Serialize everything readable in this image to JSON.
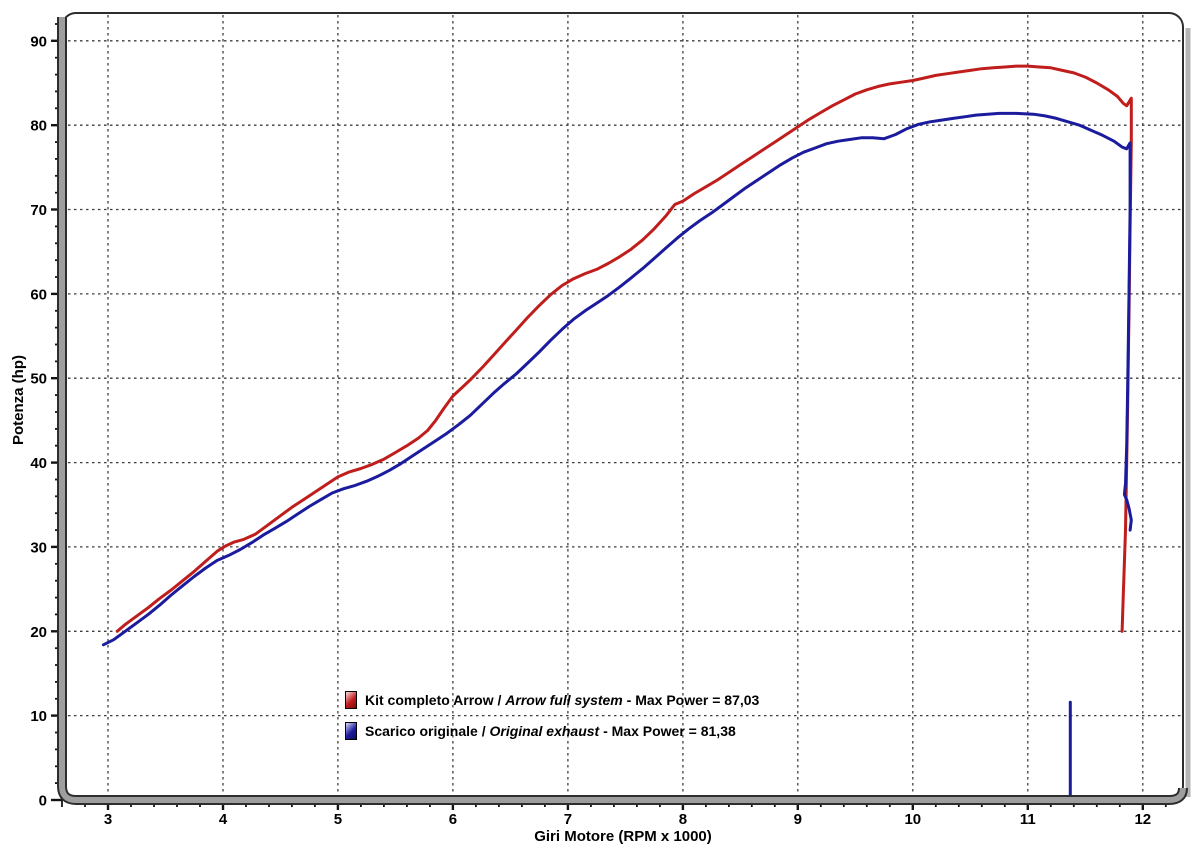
{
  "chart_data": {
    "type": "line",
    "title": "",
    "xlabel": "Giri Motore (RPM x 1000)",
    "ylabel": "Potenza (hp)",
    "xlim": [
      2.6,
      12.35
    ],
    "ylim": [
      0,
      93.3
    ],
    "x_ticks": [
      3,
      4,
      5,
      6,
      7,
      8,
      9,
      10,
      11,
      12
    ],
    "y_ticks": [
      0,
      10,
      20,
      30,
      40,
      50,
      60,
      70,
      80,
      90
    ],
    "x_minor_step": 0.2,
    "y_minor_step": 2,
    "grid": true,
    "grid_style": "dashed",
    "legend_position": "bottom-center-inside",
    "colors": {
      "grid": "#3d3d3d",
      "frame_gray": "#9e9e9e",
      "frame_dark": "#2d2d2d",
      "shadow": "#b5b5b5"
    },
    "series": [
      {
        "id": "arrow-kit",
        "name": "Kit completo Arrow / Arrow full system",
        "max_power": "87,03",
        "color": "#c01d1d",
        "color_light": "#fbdede",
        "color_dark": "#7c0b0b",
        "segments": [
          [
            [
              3.08,
              20
            ],
            [
              3.15,
              20.8
            ],
            [
              3.25,
              21.8
            ],
            [
              3.35,
              22.8
            ],
            [
              3.45,
              23.9
            ],
            [
              3.55,
              24.9
            ],
            [
              3.65,
              26
            ],
            [
              3.75,
              27.1
            ],
            [
              3.85,
              28.3
            ],
            [
              3.95,
              29.5
            ],
            [
              4.02,
              30.1
            ],
            [
              4.1,
              30.6
            ],
            [
              4.18,
              30.9
            ],
            [
              4.28,
              31.5
            ],
            [
              4.4,
              32.7
            ],
            [
              4.5,
              33.7
            ],
            [
              4.6,
              34.7
            ],
            [
              4.7,
              35.6
            ],
            [
              4.8,
              36.5
            ],
            [
              4.9,
              37.4
            ],
            [
              5,
              38.3
            ],
            [
              5.1,
              38.9
            ],
            [
              5.2,
              39.3
            ],
            [
              5.3,
              39.8
            ],
            [
              5.4,
              40.4
            ],
            [
              5.5,
              41.2
            ],
            [
              5.6,
              42
            ],
            [
              5.7,
              42.9
            ],
            [
              5.78,
              43.8
            ],
            [
              5.85,
              45
            ],
            [
              5.92,
              46.4
            ],
            [
              6,
              47.9
            ],
            [
              6.08,
              48.9
            ],
            [
              6.15,
              49.8
            ],
            [
              6.25,
              51.2
            ],
            [
              6.35,
              52.7
            ],
            [
              6.45,
              54.2
            ],
            [
              6.55,
              55.7
            ],
            [
              6.65,
              57.2
            ],
            [
              6.75,
              58.6
            ],
            [
              6.85,
              59.9
            ],
            [
              6.95,
              61
            ],
            [
              7.05,
              61.8
            ],
            [
              7.15,
              62.4
            ],
            [
              7.25,
              62.9
            ],
            [
              7.35,
              63.6
            ],
            [
              7.45,
              64.4
            ],
            [
              7.55,
              65.3
            ],
            [
              7.65,
              66.4
            ],
            [
              7.75,
              67.7
            ],
            [
              7.85,
              69.2
            ],
            [
              7.93,
              70.6
            ],
            [
              8,
              71
            ],
            [
              8.1,
              71.9
            ],
            [
              8.2,
              72.7
            ],
            [
              8.3,
              73.5
            ],
            [
              8.4,
              74.4
            ],
            [
              8.5,
              75.3
            ],
            [
              8.6,
              76.2
            ],
            [
              8.7,
              77.1
            ],
            [
              8.8,
              78
            ],
            [
              8.9,
              78.9
            ],
            [
              9,
              79.8
            ],
            [
              9.1,
              80.7
            ],
            [
              9.2,
              81.5
            ],
            [
              9.3,
              82.3
            ],
            [
              9.4,
              83
            ],
            [
              9.5,
              83.7
            ],
            [
              9.6,
              84.2
            ],
            [
              9.7,
              84.6
            ],
            [
              9.8,
              84.9
            ],
            [
              9.9,
              85.1
            ],
            [
              10,
              85.3
            ],
            [
              10.1,
              85.6
            ],
            [
              10.2,
              85.9
            ],
            [
              10.3,
              86.1
            ],
            [
              10.4,
              86.3
            ],
            [
              10.5,
              86.5
            ],
            [
              10.6,
              86.7
            ],
            [
              10.7,
              86.8
            ],
            [
              10.8,
              86.9
            ],
            [
              10.9,
              87
            ],
            [
              11,
              87
            ],
            [
              11.1,
              86.9
            ],
            [
              11.2,
              86.8
            ],
            [
              11.3,
              86.5
            ],
            [
              11.4,
              86.2
            ],
            [
              11.5,
              85.7
            ],
            [
              11.6,
              85
            ],
            [
              11.7,
              84.2
            ],
            [
              11.78,
              83.4
            ],
            [
              11.83,
              82.6
            ],
            [
              11.86,
              82.3
            ],
            [
              11.9,
              83.2
            ],
            [
              11.9,
              78
            ],
            [
              11.89,
              68
            ],
            [
              11.88,
              58
            ],
            [
              11.87,
              48
            ],
            [
              11.86,
              40
            ],
            [
              11.85,
              32
            ],
            [
              11.83,
              24
            ],
            [
              11.82,
              20
            ]
          ]
        ]
      },
      {
        "id": "original-exhaust",
        "name": "Scarico originale / Original exhaust",
        "max_power": "81,38",
        "color": "#1b1b9e",
        "color_light": "#dcdcf8",
        "color_dark": "#0d0d62",
        "segments": [
          [
            [
              2.96,
              18.4
            ],
            [
              3.05,
              19
            ],
            [
              3.15,
              20
            ],
            [
              3.25,
              21
            ],
            [
              3.35,
              22
            ],
            [
              3.45,
              23.1
            ],
            [
              3.55,
              24.3
            ],
            [
              3.65,
              25.4
            ],
            [
              3.75,
              26.5
            ],
            [
              3.85,
              27.5
            ],
            [
              3.95,
              28.4
            ],
            [
              4.05,
              29
            ],
            [
              4.15,
              29.7
            ],
            [
              4.25,
              30.5
            ],
            [
              4.35,
              31.4
            ],
            [
              4.45,
              32.2
            ],
            [
              4.55,
              33
            ],
            [
              4.65,
              33.9
            ],
            [
              4.75,
              34.8
            ],
            [
              4.85,
              35.6
            ],
            [
              4.95,
              36.4
            ],
            [
              5.05,
              36.9
            ],
            [
              5.15,
              37.3
            ],
            [
              5.25,
              37.8
            ],
            [
              5.35,
              38.4
            ],
            [
              5.45,
              39.1
            ],
            [
              5.55,
              39.9
            ],
            [
              5.65,
              40.8
            ],
            [
              5.75,
              41.7
            ],
            [
              5.85,
              42.6
            ],
            [
              5.95,
              43.5
            ],
            [
              6.05,
              44.5
            ],
            [
              6.15,
              45.6
            ],
            [
              6.25,
              46.9
            ],
            [
              6.35,
              48.2
            ],
            [
              6.45,
              49.4
            ],
            [
              6.55,
              50.5
            ],
            [
              6.65,
              51.8
            ],
            [
              6.75,
              53.1
            ],
            [
              6.85,
              54.5
            ],
            [
              6.95,
              55.8
            ],
            [
              7.05,
              57
            ],
            [
              7.15,
              58
            ],
            [
              7.25,
              58.9
            ],
            [
              7.35,
              59.8
            ],
            [
              7.45,
              60.8
            ],
            [
              7.55,
              61.9
            ],
            [
              7.65,
              63
            ],
            [
              7.75,
              64.2
            ],
            [
              7.85,
              65.4
            ],
            [
              7.95,
              66.6
            ],
            [
              8.05,
              67.7
            ],
            [
              8.15,
              68.7
            ],
            [
              8.25,
              69.6
            ],
            [
              8.35,
              70.6
            ],
            [
              8.45,
              71.6
            ],
            [
              8.55,
              72.6
            ],
            [
              8.65,
              73.5
            ],
            [
              8.75,
              74.4
            ],
            [
              8.85,
              75.3
            ],
            [
              8.95,
              76.1
            ],
            [
              9.05,
              76.8
            ],
            [
              9.15,
              77.3
            ],
            [
              9.25,
              77.8
            ],
            [
              9.35,
              78.1
            ],
            [
              9.45,
              78.3
            ],
            [
              9.55,
              78.5
            ],
            [
              9.65,
              78.5
            ],
            [
              9.75,
              78.4
            ],
            [
              9.85,
              78.9
            ],
            [
              9.95,
              79.6
            ],
            [
              10.05,
              80.1
            ],
            [
              10.15,
              80.4
            ],
            [
              10.25,
              80.6
            ],
            [
              10.35,
              80.8
            ],
            [
              10.45,
              81
            ],
            [
              10.55,
              81.2
            ],
            [
              10.65,
              81.3
            ],
            [
              10.75,
              81.4
            ],
            [
              10.9,
              81.4
            ],
            [
              11.05,
              81.3
            ],
            [
              11.15,
              81.1
            ],
            [
              11.25,
              80.8
            ],
            [
              11.35,
              80.4
            ],
            [
              11.45,
              80
            ],
            [
              11.55,
              79.4
            ],
            [
              11.65,
              78.8
            ],
            [
              11.75,
              78.1
            ],
            [
              11.82,
              77.4
            ],
            [
              11.86,
              77.2
            ],
            [
              11.89,
              77.9
            ],
            [
              11.89,
              70
            ],
            [
              11.88,
              60
            ],
            [
              11.87,
              50
            ],
            [
              11.86,
              42
            ],
            [
              11.85,
              37.5
            ],
            [
              11.84,
              36.2
            ],
            [
              11.86,
              35.6
            ],
            [
              11.88,
              34.6
            ],
            [
              11.9,
              33.2
            ],
            [
              11.89,
              32
            ]
          ],
          [
            [
              11.37,
              0
            ],
            [
              11.37,
              11.6
            ]
          ]
        ]
      }
    ]
  },
  "legend": {
    "items": [
      {
        "prefix": "Kit completo Arrow / ",
        "italic": "Arrow full system",
        "suffix": " - Max Power = 87,03"
      },
      {
        "prefix": "Scarico originale / ",
        "italic": "Original exhaust",
        "suffix": " - Max Power = 81,38"
      }
    ]
  }
}
